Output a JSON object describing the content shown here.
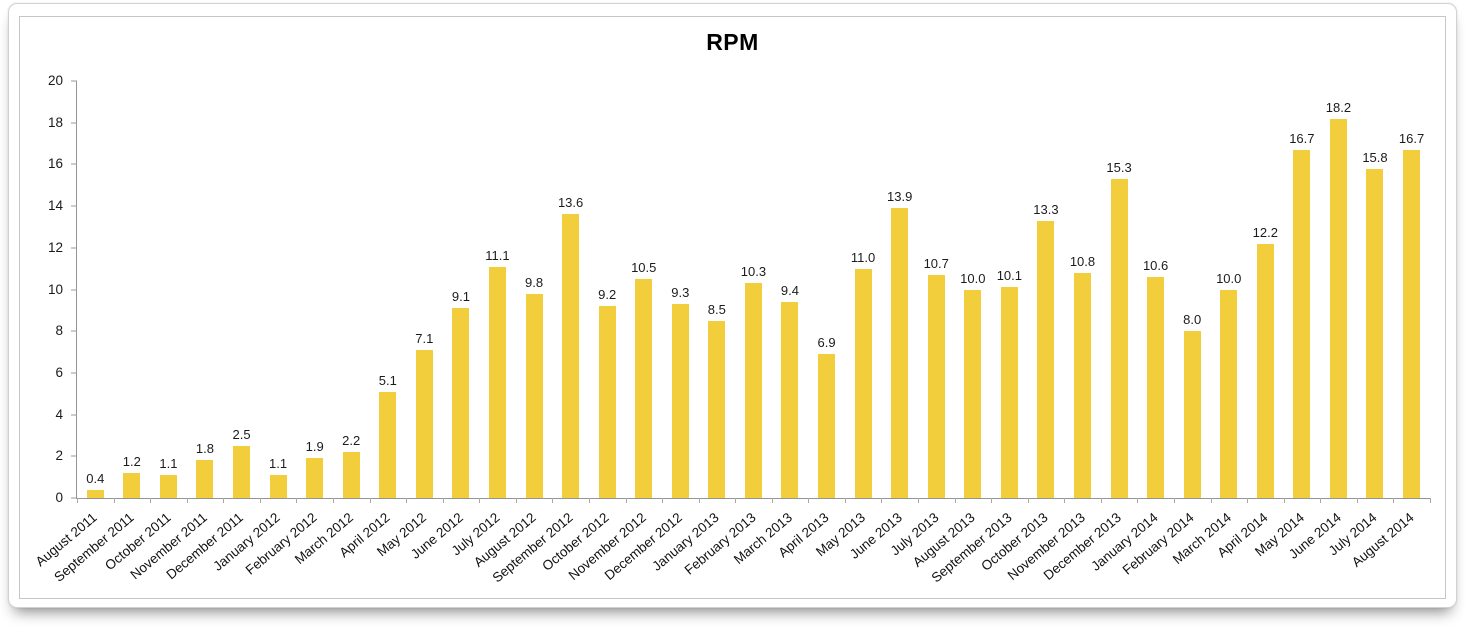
{
  "title": "RPM",
  "colors": {
    "bar": "#F2CE3D",
    "axis_line": "#949494",
    "tick": "#A8A8A8",
    "text": "#1A1A1A",
    "card_border": "#D2D2D2",
    "frame_border": "#C6C6C6",
    "background": "#FFFFFF"
  },
  "chart_data": {
    "type": "bar",
    "title": "RPM",
    "categories": [
      "August 2011",
      "September 2011",
      "October 2011",
      "November 2011",
      "December 2011",
      "January 2012",
      "February 2012",
      "March 2012",
      "April 2012",
      "May 2012",
      "June 2012",
      "July 2012",
      "August 2012",
      "September 2012",
      "October 2012",
      "November 2012",
      "December 2012",
      "January 2013",
      "February 2013",
      "March 2013",
      "April 2013",
      "May 2013",
      "June 2013",
      "July 2013",
      "August 2013",
      "September 2013",
      "October 2013",
      "November 2013",
      "December 2013",
      "January 2014",
      "February 2014",
      "March 2014",
      "April 2014",
      "May 2014",
      "June 2014",
      "July 2014",
      "August 2014"
    ],
    "values": [
      0.4,
      1.2,
      1.1,
      1.8,
      2.5,
      1.1,
      1.9,
      2.2,
      5.1,
      7.1,
      9.1,
      11.1,
      9.8,
      13.6,
      9.2,
      10.5,
      9.3,
      8.5,
      10.3,
      9.4,
      6.9,
      11.0,
      13.9,
      10.7,
      10.0,
      10.1,
      13.3,
      10.8,
      15.3,
      10.6,
      8.0,
      10.0,
      12.2,
      16.7,
      18.2,
      15.8,
      16.7
    ],
    "value_labels": [
      "0.4",
      "1.2",
      "1.1",
      "1.8",
      "2.5",
      "1.1",
      "1.9",
      "2.2",
      "5.1",
      "7.1",
      "9.1",
      "11.1",
      "9.8",
      "13.6",
      "9.2",
      "10.5",
      "9.3",
      "8.5",
      "10.3",
      "9.4",
      "6.9",
      "11.0",
      "13.9",
      "10.7",
      "10.0",
      "10.1",
      "13.3",
      "10.8",
      "15.3",
      "10.6",
      "8.0",
      "10.0",
      "12.2",
      "16.7",
      "18.2",
      "15.8",
      "16.7"
    ],
    "xlabel": "",
    "ylabel": "",
    "ylim": [
      0,
      20
    ],
    "ytick_step": 2,
    "ytick_labels": [
      "0",
      "2",
      "4",
      "6",
      "8",
      "10",
      "12",
      "14",
      "16",
      "18",
      "20"
    ],
    "grid": false,
    "legend": false
  }
}
